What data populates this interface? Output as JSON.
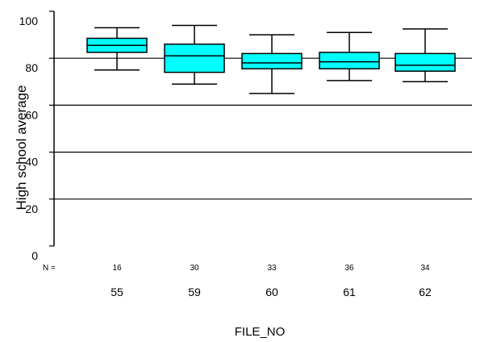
{
  "chart_data": {
    "type": "boxplot",
    "xlabel": "FILE_NO",
    "ylabel": "High school average",
    "ylim": [
      0,
      100
    ],
    "yticks": [
      0,
      20,
      40,
      60,
      80,
      100
    ],
    "grid": "horizontal",
    "n_label": "N =",
    "categories": [
      "55",
      "59",
      "60",
      "61",
      "62"
    ],
    "n": [
      "16",
      "30",
      "33",
      "36",
      "34"
    ],
    "boxes": [
      {
        "whisker_low": 75,
        "q1": 82.5,
        "median": 85.5,
        "q3": 88.5,
        "whisker_high": 93
      },
      {
        "whisker_low": 69,
        "q1": 74,
        "median": 81,
        "q3": 86,
        "whisker_high": 94
      },
      {
        "whisker_low": 65,
        "q1": 75.5,
        "median": 78,
        "q3": 82,
        "whisker_high": 90
      },
      {
        "whisker_low": 70.5,
        "q1": 75.5,
        "median": 78.5,
        "q3": 82.5,
        "whisker_high": 91
      },
      {
        "whisker_low": 70,
        "q1": 74.5,
        "median": 77,
        "q3": 82,
        "whisker_high": 92.5
      }
    ],
    "box_color": "#00FFFF",
    "line_color": "#000000"
  }
}
